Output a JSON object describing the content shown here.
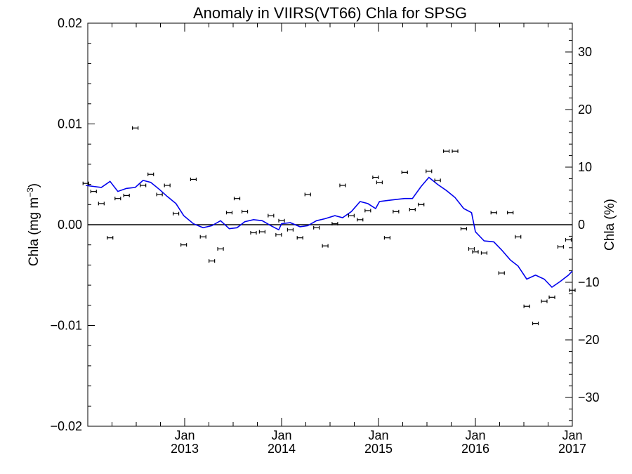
{
  "chart_data": {
    "type": "scatter",
    "title": "Anomaly in VIIRS(VT66) Chla for SPSG",
    "y_left_label": "Chla (mg m",
    "y_left_label_exp": "−3",
    "y_left_label_close": ")",
    "y_right_label": "Chla (%)",
    "x_ticks": [
      {
        "x": 2013.0,
        "month": "Jan",
        "year": "2013"
      },
      {
        "x": 2014.0,
        "month": "Jan",
        "year": "2014"
      },
      {
        "x": 2015.0,
        "month": "Jan",
        "year": "2015"
      },
      {
        "x": 2016.0,
        "month": "Jan",
        "year": "2016"
      },
      {
        "x": 2017.0,
        "month": "Jan",
        "year": "2017"
      }
    ],
    "xlim": [
      2012.0,
      2017.0
    ],
    "ylim_left": [
      -0.02,
      0.02
    ],
    "yticks_left": [
      {
        "value": 0.02,
        "label": "0.02"
      },
      {
        "value": 0.01,
        "label": "0.01"
      },
      {
        "value": 0.0,
        "label": "0.00"
      },
      {
        "value": -0.01,
        "label": "−0.01"
      },
      {
        "value": -0.02,
        "label": "−0.02"
      }
    ],
    "ylim_right": [
      -35,
      35
    ],
    "yticks_right": [
      {
        "value": 30,
        "label": "30"
      },
      {
        "value": 20,
        "label": "20"
      },
      {
        "value": 10,
        "label": "10"
      },
      {
        "value": 0,
        "label": "0"
      },
      {
        "value": -10,
        "label": "−10"
      },
      {
        "value": -20,
        "label": "−20"
      },
      {
        "value": -30,
        "label": "−30"
      }
    ],
    "zero_line": true,
    "colors": {
      "points": "#000000",
      "running_mean": "#0000ee",
      "zero_line": "#000000"
    },
    "series": [
      {
        "kind": "points_with_error_bars",
        "points": [
          [
            2011.98,
            0.0041
          ],
          [
            2012.06,
            0.0033
          ],
          [
            2012.14,
            0.0021
          ],
          [
            2012.23,
            -0.0013
          ],
          [
            2012.31,
            0.0026
          ],
          [
            2012.4,
            0.0029
          ],
          [
            2012.49,
            0.0096
          ],
          [
            2012.57,
            0.0039
          ],
          [
            2012.65,
            0.005
          ],
          [
            2012.74,
            0.003
          ],
          [
            2012.82,
            0.0039
          ],
          [
            2012.91,
            0.0011
          ],
          [
            2012.99,
            -0.002
          ],
          [
            2013.09,
            0.0045
          ],
          [
            2013.19,
            -0.0012
          ],
          [
            2013.28,
            -0.0036
          ],
          [
            2013.37,
            -0.0024
          ],
          [
            2013.46,
            0.0012
          ],
          [
            2013.54,
            0.0026
          ],
          [
            2013.62,
            0.0013
          ],
          [
            2013.71,
            -0.0008
          ],
          [
            2013.8,
            -0.0007
          ],
          [
            2013.89,
            0.0009
          ],
          [
            2013.97,
            -0.001
          ],
          [
            2014.0,
            0.0004
          ],
          [
            2014.09,
            -0.0005
          ],
          [
            2014.19,
            -0.0013
          ],
          [
            2014.27,
            0.003
          ],
          [
            2014.36,
            -0.0003
          ],
          [
            2014.45,
            -0.0021
          ],
          [
            2014.55,
            0.0001
          ],
          [
            2014.63,
            0.0039
          ],
          [
            2014.72,
            0.0009
          ],
          [
            2014.81,
            0.0005
          ],
          [
            2014.89,
            0.0014
          ],
          [
            2014.97,
            0.0047
          ],
          [
            2015.01,
            0.0042
          ],
          [
            2015.09,
            -0.0013
          ],
          [
            2015.18,
            0.0013
          ],
          [
            2015.27,
            0.0052
          ],
          [
            2015.35,
            0.0015
          ],
          [
            2015.44,
            0.002
          ],
          [
            2015.52,
            0.0053
          ],
          [
            2015.61,
            0.0044
          ],
          [
            2015.7,
            0.0073
          ],
          [
            2015.79,
            0.0073
          ],
          [
            2015.88,
            -0.0004
          ],
          [
            2015.96,
            -0.0024
          ],
          [
            2016.0,
            -0.0027
          ],
          [
            2016.09,
            -0.0028
          ],
          [
            2016.19,
            0.0012
          ],
          [
            2016.27,
            -0.0048
          ],
          [
            2016.36,
            0.0012
          ],
          [
            2016.44,
            -0.0012
          ],
          [
            2016.53,
            -0.0081
          ],
          [
            2016.62,
            -0.0098
          ],
          [
            2016.71,
            -0.0076
          ],
          [
            2016.79,
            -0.0072
          ],
          [
            2016.88,
            -0.0022
          ],
          [
            2016.96,
            -0.0015
          ],
          [
            2017.0,
            -0.0065
          ]
        ]
      },
      {
        "kind": "running_mean_line",
        "points": [
          [
            2011.98,
            0.0039
          ],
          [
            2012.06,
            0.0038
          ],
          [
            2012.14,
            0.0037
          ],
          [
            2012.23,
            0.0043
          ],
          [
            2012.31,
            0.0033
          ],
          [
            2012.4,
            0.0036
          ],
          [
            2012.49,
            0.0037
          ],
          [
            2012.57,
            0.0044
          ],
          [
            2012.65,
            0.0042
          ],
          [
            2012.74,
            0.0035
          ],
          [
            2012.82,
            0.0028
          ],
          [
            2012.91,
            0.0021
          ],
          [
            2012.99,
            0.0009
          ],
          [
            2013.09,
            0.0001
          ],
          [
            2013.19,
            -0.0003
          ],
          [
            2013.28,
            -0.0001
          ],
          [
            2013.37,
            0.0004
          ],
          [
            2013.46,
            -0.0004
          ],
          [
            2013.54,
            -0.0003
          ],
          [
            2013.62,
            0.0003
          ],
          [
            2013.71,
            0.0005
          ],
          [
            2013.8,
            0.0004
          ],
          [
            2013.89,
            -0.0001
          ],
          [
            2013.97,
            -0.0005
          ],
          [
            2014.0,
            0.0001
          ],
          [
            2014.09,
            0.0002
          ],
          [
            2014.19,
            -0.0002
          ],
          [
            2014.27,
            -0.0001
          ],
          [
            2014.36,
            0.0004
          ],
          [
            2014.45,
            0.0006
          ],
          [
            2014.55,
            0.0009
          ],
          [
            2014.63,
            0.0007
          ],
          [
            2014.72,
            0.0013
          ],
          [
            2014.81,
            0.0023
          ],
          [
            2014.89,
            0.0021
          ],
          [
            2014.97,
            0.0016
          ],
          [
            2015.01,
            0.0023
          ],
          [
            2015.09,
            0.0024
          ],
          [
            2015.18,
            0.0025
          ],
          [
            2015.27,
            0.0026
          ],
          [
            2015.35,
            0.0026
          ],
          [
            2015.44,
            0.0038
          ],
          [
            2015.52,
            0.0047
          ],
          [
            2015.61,
            0.004
          ],
          [
            2015.7,
            0.0034
          ],
          [
            2015.79,
            0.0027
          ],
          [
            2015.88,
            0.0016
          ],
          [
            2015.96,
            0.0012
          ],
          [
            2016.0,
            -0.0007
          ],
          [
            2016.09,
            -0.0016
          ],
          [
            2016.19,
            -0.0017
          ],
          [
            2016.27,
            -0.0025
          ],
          [
            2016.36,
            -0.0035
          ],
          [
            2016.44,
            -0.0041
          ],
          [
            2016.53,
            -0.0054
          ],
          [
            2016.62,
            -0.005
          ],
          [
            2016.71,
            -0.0054
          ],
          [
            2016.79,
            -0.0062
          ],
          [
            2016.88,
            -0.0056
          ],
          [
            2016.96,
            -0.005
          ],
          [
            2017.0,
            -0.0046
          ]
        ]
      }
    ]
  }
}
